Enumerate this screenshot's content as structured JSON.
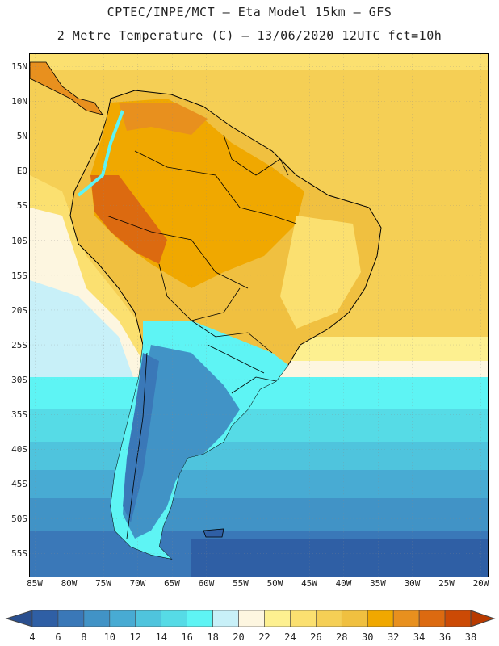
{
  "header": {
    "title_line1": "CPTEC/INPE/MCT –  Eta Model 15km – GFS",
    "title_line2": "2 Metre Temperature (C) – 13/06/2020 12UTC fct=10h"
  },
  "map": {
    "lat_labels": [
      "15N",
      "10N",
      "5N",
      "EQ",
      "5S",
      "10S",
      "15S",
      "20S",
      "25S",
      "30S",
      "35S",
      "40S",
      "45S",
      "50S",
      "55S"
    ],
    "lon_labels": [
      "85W",
      "80W",
      "75W",
      "70W",
      "65W",
      "60W",
      "55W",
      "50W",
      "45W",
      "40W",
      "35W",
      "30W",
      "25W",
      "20W"
    ],
    "colors": {
      "t4": "#2f5fa5",
      "t6": "#3a78b8",
      "t8": "#4193c6",
      "t10": "#48abd3",
      "t12": "#4fc4dd",
      "t14": "#56dbe6",
      "t16": "#5ef4f4",
      "t18": "#c8f0f8",
      "t20": "#fdf6e0",
      "t22": "#fdf090",
      "t24": "#fbe070",
      "t26": "#f5cf55",
      "t28": "#f0c040",
      "t30": "#f0a800",
      "t32": "#e8901e",
      "t34": "#dc6a10",
      "t36": "#cc4a05",
      "t38": "#b83a00"
    }
  },
  "colorbar": {
    "labels": [
      "4",
      "6",
      "8",
      "10",
      "12",
      "14",
      "16",
      "18",
      "20",
      "22",
      "24",
      "26",
      "28",
      "30",
      "32",
      "34",
      "36",
      "38"
    ],
    "colors": [
      "#2f5fa5",
      "#3a78b8",
      "#4193c6",
      "#48abd3",
      "#4fc4dd",
      "#56dbe6",
      "#5ef4f4",
      "#c8f0f8",
      "#fdf6e0",
      "#fdf090",
      "#fbe070",
      "#f5cf55",
      "#f0c040",
      "#f0a800",
      "#e8901e",
      "#dc6a10",
      "#cc4a05"
    ],
    "below_color": "#2a4f8f",
    "above_color": "#b83a00"
  }
}
